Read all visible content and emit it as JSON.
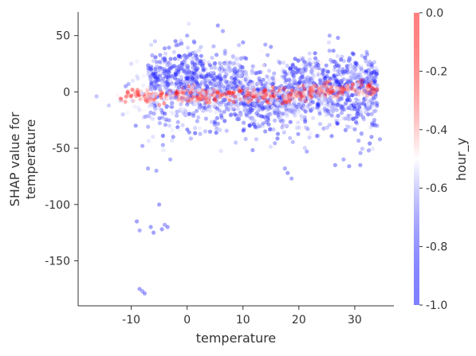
{
  "chart_data": {
    "type": "scatter",
    "title": "",
    "xlabel": "temperature",
    "ylabel_lines": [
      "SHAP value for",
      "temperature"
    ],
    "xlim": [
      -19.5,
      37
    ],
    "ylim": [
      -190,
      71
    ],
    "xticks": [
      -10,
      0,
      10,
      20,
      30
    ],
    "xtick_labels": [
      "-10",
      "0",
      "10",
      "20",
      "30"
    ],
    "yticks": [
      50,
      0,
      -50,
      -100,
      -150
    ],
    "ytick_labels": [
      "50",
      "0",
      "-50",
      "-100",
      "-150"
    ],
    "grid": false,
    "colorbar": {
      "label": "hour_y",
      "range": [
        -1.0,
        0.0
      ],
      "ticks": [
        0.0,
        -0.2,
        -0.4,
        -0.6,
        -0.8,
        -1.0
      ],
      "tick_labels": [
        "0.0",
        "-0.2",
        "-0.4",
        "-0.6",
        "-0.8",
        "-1.0"
      ],
      "colormap": "bwr",
      "low_color": "#0000ff",
      "mid_color": "#ffffff",
      "high_color": "#ff0000"
    },
    "point_alpha": 0.45,
    "points": [
      [
        -16.2,
        -4,
        -0.75
      ],
      [
        -14,
        -12,
        -0.7
      ],
      [
        -12.5,
        -3,
        -0.45
      ],
      [
        -12,
        -8,
        -0.6
      ],
      [
        -11.5,
        -20,
        -0.7
      ],
      [
        -11,
        5,
        -0.85
      ],
      [
        -10.5,
        7,
        -0.8
      ],
      [
        -10,
        25,
        -0.65
      ],
      [
        -9.6,
        -8,
        -0.35
      ],
      [
        -9.2,
        -30,
        -0.9
      ],
      [
        -9,
        -115,
        -0.9
      ],
      [
        -8.5,
        -123,
        -0.85
      ],
      [
        -8,
        -48,
        -0.85
      ],
      [
        -7.5,
        -22,
        -0.8
      ],
      [
        -7,
        -68,
        -0.85
      ],
      [
        -6.5,
        -120,
        -0.9
      ],
      [
        -6,
        -125,
        -0.9
      ],
      [
        -5.5,
        -70,
        -0.85
      ],
      [
        -5,
        -100,
        -0.9
      ],
      [
        -4.5,
        -122,
        -0.9
      ],
      [
        -4,
        -118,
        -0.85
      ],
      [
        -3.5,
        -120,
        -0.9
      ],
      [
        -3,
        -60,
        -0.85
      ],
      [
        -2.5,
        -40,
        -0.9
      ],
      [
        -2,
        -5,
        -0.85
      ],
      [
        -8.5,
        -175,
        -0.9
      ],
      [
        -8,
        -177,
        -0.85
      ],
      [
        -7.6,
        -179,
        -0.9
      ],
      [
        -1.5,
        42,
        -0.85
      ],
      [
        -1,
        43,
        -0.9
      ],
      [
        0,
        50,
        -0.85
      ],
      [
        5.5,
        59,
        -0.9
      ],
      [
        6.4,
        54,
        -0.85
      ],
      [
        10,
        44,
        -0.9
      ],
      [
        14,
        42,
        -0.85
      ],
      [
        15,
        40,
        -0.9
      ],
      [
        25.5,
        50,
        -0.85
      ],
      [
        27,
        48,
        -0.9
      ],
      [
        17.5,
        -68,
        -0.85
      ],
      [
        18,
        -72,
        -0.9
      ],
      [
        18.7,
        -77,
        -0.85
      ],
      [
        26.5,
        -65,
        -0.9
      ],
      [
        28,
        -60,
        -0.85
      ],
      [
        29,
        -66,
        -0.9
      ],
      [
        31,
        -65,
        -0.9
      ],
      [
        32.5,
        -52,
        -0.85
      ],
      [
        33,
        -40,
        -0.9
      ],
      [
        34,
        -30,
        -0.8
      ],
      [
        34.5,
        -42,
        -0.85
      ],
      [
        33.5,
        -25,
        -0.85
      ]
    ]
  }
}
